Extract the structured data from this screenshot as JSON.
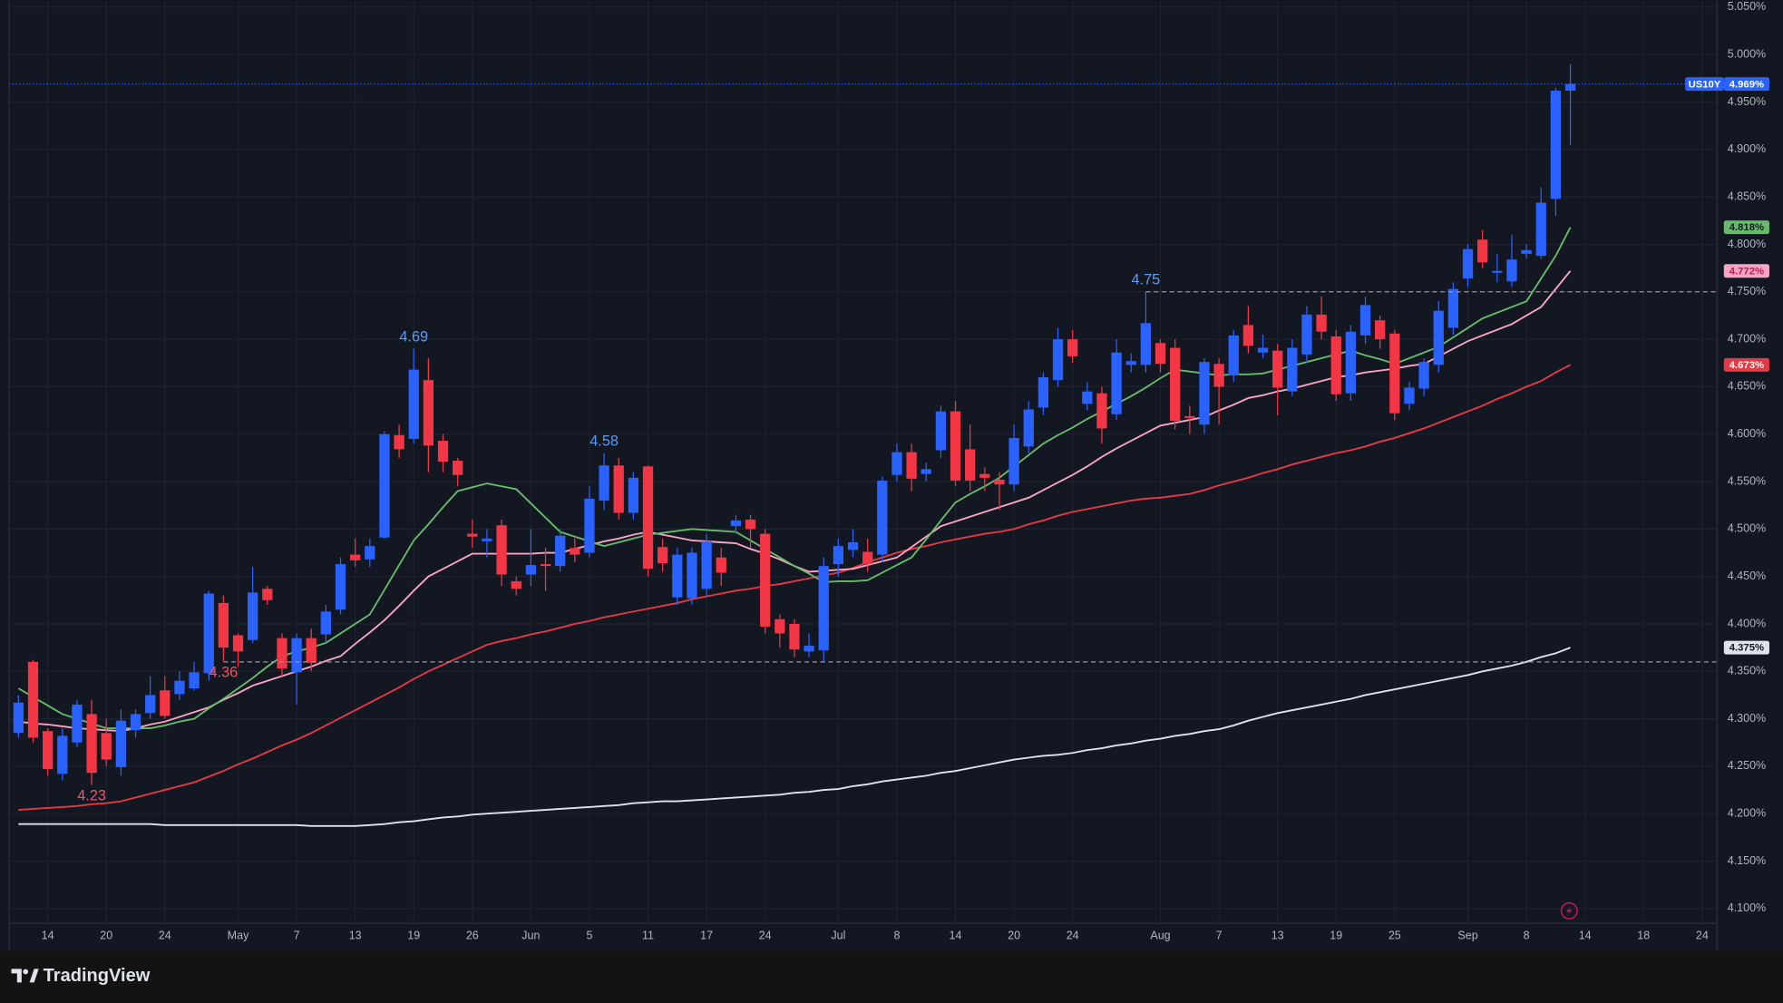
{
  "chart_data": {
    "type": "candlestick",
    "symbol": "US10Y",
    "last_price_label": "4.969%",
    "up_color": "#2962ff",
    "down_color": "#f23645",
    "grid": true,
    "ylim": [
      4.0844,
      5.0575
    ],
    "yticks": [
      {
        "value": 4.1,
        "label": "4.100%"
      },
      {
        "value": 4.15,
        "label": "4.150%"
      },
      {
        "value": 4.2,
        "label": "4.200%"
      },
      {
        "value": 4.25,
        "label": "4.250%"
      },
      {
        "value": 4.3,
        "label": "4.300%"
      },
      {
        "value": 4.35,
        "label": "4.350%"
      },
      {
        "value": 4.4,
        "label": "4.400%"
      },
      {
        "value": 4.45,
        "label": "4.450%"
      },
      {
        "value": 4.5,
        "label": "4.500%"
      },
      {
        "value": 4.55,
        "label": "4.550%"
      },
      {
        "value": 4.6,
        "label": "4.600%"
      },
      {
        "value": 4.65,
        "label": "4.650%"
      },
      {
        "value": 4.7,
        "label": "4.700%"
      },
      {
        "value": 4.75,
        "label": "4.750%"
      },
      {
        "value": 4.8,
        "label": "4.800%"
      },
      {
        "value": 4.85,
        "label": "4.850%"
      },
      {
        "value": 4.9,
        "label": "4.900%"
      },
      {
        "value": 4.95,
        "label": "4.950%"
      },
      {
        "value": 5.0,
        "label": "5.000%"
      },
      {
        "value": 5.05,
        "label": "5.050%"
      }
    ],
    "categories": [
      null,
      null,
      "14",
      null,
      null,
      null,
      "20",
      null,
      null,
      null,
      "24",
      null,
      null,
      null,
      null,
      "May",
      null,
      null,
      null,
      "7",
      null,
      null,
      null,
      "13",
      null,
      null,
      null,
      "19",
      null,
      null,
      null,
      "26",
      null,
      null,
      null,
      "Jun",
      null,
      null,
      null,
      "5",
      null,
      null,
      null,
      "11",
      null,
      null,
      null,
      "17",
      null,
      null,
      null,
      "24",
      null,
      null,
      null,
      null,
      "Jul",
      null,
      null,
      null,
      "8",
      null,
      null,
      null,
      "14",
      null,
      null,
      null,
      "20",
      null,
      null,
      null,
      "24",
      null,
      null,
      null,
      null,
      null,
      "Aug",
      null,
      null,
      null,
      "7",
      null,
      null,
      null,
      "13",
      null,
      null,
      null,
      "19",
      null,
      null,
      null,
      "25",
      null,
      null,
      null,
      null,
      "Sep",
      null,
      null,
      null,
      "8",
      null,
      null,
      null,
      "14",
      null,
      null,
      null,
      "18",
      null,
      null,
      null,
      "24"
    ],
    "open": [
      4.285,
      4.36,
      4.287,
      4.242,
      4.275,
      4.305,
      4.285,
      4.249,
      4.288,
      4.306,
      4.33,
      4.326,
      4.332,
      4.348,
      4.422,
      4.388,
      4.383,
      4.437,
      4.385,
      4.349,
      4.385,
      4.389,
      4.415,
      4.473,
      4.468,
      4.491,
      4.599,
      4.595,
      4.657,
      4.593,
      4.572,
      4.495,
      4.487,
      4.504,
      4.445,
      4.452,
      4.463,
      4.461,
      4.48,
      4.475,
      4.53,
      4.567,
      4.517,
      4.566,
      4.481,
      4.428,
      4.427,
      4.437,
      4.47,
      4.503,
      4.51,
      4.495,
      4.405,
      4.4,
      4.371,
      4.372,
      4.463,
      4.478,
      4.476,
      4.473,
      4.557,
      4.581,
      4.558,
      4.583,
      4.624,
      4.584,
      4.558,
      4.552,
      4.547,
      4.587,
      4.628,
      4.657,
      4.7,
      4.632,
      4.643,
      4.621,
      4.673,
      4.673,
      4.696,
      4.691,
      4.619,
      4.61,
      4.674,
      4.662,
      4.715,
      4.686,
      4.688,
      4.645,
      4.684,
      4.726,
      4.703,
      4.643,
      4.704,
      4.72,
      4.706,
      4.632,
      4.648,
      4.673,
      4.712,
      4.764,
      4.805,
      4.77,
      4.761,
      4.79,
      4.788,
      4.848,
      4.962,
      null,
      null,
      null,
      null,
      null,
      null,
      null,
      null,
      null
    ],
    "high": [
      4.325,
      4.362,
      4.29,
      4.29,
      4.32,
      4.32,
      4.3,
      4.31,
      4.31,
      4.345,
      4.345,
      4.35,
      4.36,
      4.435,
      4.43,
      4.39,
      4.46,
      4.44,
      4.39,
      4.39,
      4.395,
      4.42,
      4.47,
      4.49,
      4.49,
      4.603,
      4.61,
      4.69,
      4.68,
      4.6,
      4.575,
      4.51,
      4.5,
      4.51,
      4.45,
      4.5,
      4.48,
      4.5,
      4.49,
      4.545,
      4.58,
      4.575,
      4.56,
      4.567,
      4.49,
      4.48,
      4.48,
      4.495,
      4.48,
      4.515,
      4.515,
      4.5,
      4.41,
      4.405,
      4.39,
      4.47,
      4.49,
      4.5,
      4.49,
      4.555,
      4.59,
      4.59,
      4.57,
      4.63,
      4.635,
      4.61,
      4.565,
      4.56,
      4.61,
      4.635,
      4.665,
      4.712,
      4.71,
      4.655,
      4.65,
      4.7,
      4.685,
      4.75,
      4.7,
      4.7,
      4.63,
      4.68,
      4.68,
      4.71,
      4.735,
      4.705,
      4.695,
      4.7,
      4.735,
      4.745,
      4.71,
      4.715,
      4.745,
      4.725,
      4.71,
      4.655,
      4.68,
      4.74,
      4.76,
      4.8,
      4.815,
      4.79,
      4.81,
      4.8,
      4.86,
      4.965,
      4.99,
      null,
      null,
      null,
      null,
      null,
      null,
      null,
      null,
      null
    ],
    "low": [
      4.28,
      4.275,
      4.24,
      4.235,
      4.27,
      4.23,
      4.25,
      4.24,
      4.28,
      4.3,
      4.3,
      4.32,
      4.33,
      4.34,
      4.36,
      4.355,
      4.38,
      4.42,
      4.345,
      4.315,
      4.35,
      4.38,
      4.41,
      4.46,
      4.46,
      4.49,
      4.575,
      4.59,
      4.56,
      4.56,
      4.545,
      4.48,
      4.47,
      4.44,
      4.43,
      4.44,
      4.435,
      4.455,
      4.465,
      4.47,
      4.52,
      4.51,
      4.51,
      4.45,
      4.455,
      4.42,
      4.42,
      4.43,
      4.44,
      4.495,
      4.48,
      4.39,
      4.375,
      4.365,
      4.365,
      4.36,
      4.45,
      4.47,
      4.455,
      4.465,
      4.55,
      4.54,
      4.55,
      4.575,
      4.545,
      4.54,
      4.54,
      4.52,
      4.54,
      4.58,
      4.62,
      4.65,
      4.675,
      4.625,
      4.59,
      4.615,
      4.665,
      4.665,
      4.665,
      4.605,
      4.6,
      4.6,
      4.61,
      4.655,
      4.685,
      4.68,
      4.62,
      4.64,
      4.675,
      4.7,
      4.635,
      4.635,
      4.695,
      4.69,
      4.615,
      4.625,
      4.64,
      4.665,
      4.705,
      4.755,
      4.775,
      4.76,
      4.755,
      4.785,
      4.785,
      4.83,
      4.905,
      null,
      null,
      null,
      null,
      null,
      null,
      null,
      null,
      null
    ],
    "close": [
      4.317,
      4.28,
      4.247,
      4.282,
      4.315,
      4.243,
      4.257,
      4.298,
      4.305,
      4.325,
      4.303,
      4.34,
      4.349,
      4.432,
      4.375,
      4.371,
      4.433,
      4.425,
      4.353,
      4.385,
      4.359,
      4.413,
      4.463,
      4.467,
      4.482,
      4.6,
      4.584,
      4.668,
      4.588,
      4.571,
      4.557,
      4.492,
      4.49,
      4.452,
      4.437,
      4.462,
      4.461,
      4.493,
      4.473,
      4.532,
      4.567,
      4.517,
      4.554,
      4.458,
      4.464,
      4.473,
      4.475,
      4.487,
      4.454,
      4.509,
      4.5,
      4.397,
      4.39,
      4.373,
      4.377,
      4.461,
      4.482,
      4.486,
      4.463,
      4.551,
      4.581,
      4.553,
      4.563,
      4.624,
      4.551,
      4.551,
      4.554,
      4.547,
      4.596,
      4.626,
      4.66,
      4.7,
      4.682,
      4.645,
      4.606,
      4.686,
      4.677,
      4.717,
      4.674,
      4.614,
      4.617,
      4.676,
      4.65,
      4.704,
      4.693,
      4.691,
      4.649,
      4.691,
      4.726,
      4.708,
      4.642,
      4.708,
      4.736,
      4.7,
      4.622,
      4.649,
      4.676,
      4.73,
      4.753,
      4.795,
      4.781,
      4.772,
      4.784,
      4.794,
      4.844,
      4.962,
      4.969,
      null,
      null,
      null,
      null,
      null,
      null,
      null,
      null,
      null
    ],
    "series": [
      {
        "color": "#e0e3eb",
        "text_color": "#131722",
        "last_label": "4.375%",
        "values": [
          4.189,
          4.189,
          4.189,
          4.189,
          4.189,
          4.189,
          4.189,
          4.189,
          4.189,
          4.189,
          4.188,
          4.188,
          4.188,
          4.188,
          4.188,
          4.188,
          4.188,
          4.188,
          4.188,
          4.188,
          4.187,
          4.187,
          4.187,
          4.187,
          4.188,
          4.189,
          4.191,
          4.192,
          4.194,
          4.196,
          4.197,
          4.199,
          4.2,
          4.201,
          4.202,
          4.203,
          4.204,
          4.205,
          4.206,
          4.207,
          4.208,
          4.209,
          4.211,
          4.212,
          4.213,
          4.213,
          4.214,
          4.215,
          4.216,
          4.217,
          4.218,
          4.219,
          4.22,
          4.222,
          4.223,
          4.225,
          4.226,
          4.229,
          4.231,
          4.234,
          4.236,
          4.238,
          4.24,
          4.243,
          4.245,
          4.248,
          4.251,
          4.254,
          4.257,
          4.259,
          4.261,
          4.262,
          4.264,
          4.267,
          4.269,
          4.272,
          4.274,
          4.277,
          4.279,
          4.282,
          4.284,
          4.287,
          4.289,
          4.293,
          4.298,
          4.302,
          4.306,
          4.309,
          4.312,
          4.315,
          4.318,
          4.321,
          4.325,
          4.328,
          4.331,
          4.334,
          4.337,
          4.34,
          4.343,
          4.346,
          4.35,
          4.353,
          4.356,
          4.36,
          4.365,
          4.369,
          4.375,
          null,
          null,
          null,
          null,
          null,
          null,
          null,
          null,
          null
        ]
      },
      {
        "color": "#e53945",
        "text_color": "#ffffff",
        "last_label": "4.673%",
        "values": [
          4.204,
          4.205,
          4.206,
          4.207,
          4.208,
          4.21,
          4.211,
          4.213,
          4.217,
          4.221,
          4.225,
          4.229,
          4.233,
          4.239,
          4.245,
          4.252,
          4.258,
          4.265,
          4.272,
          4.278,
          4.285,
          4.293,
          4.301,
          4.309,
          4.317,
          4.325,
          4.333,
          4.342,
          4.35,
          4.357,
          4.364,
          4.371,
          4.378,
          4.382,
          4.385,
          4.389,
          4.392,
          4.396,
          4.4,
          4.403,
          4.407,
          4.41,
          4.413,
          4.416,
          4.419,
          4.422,
          4.426,
          4.429,
          4.432,
          4.435,
          4.437,
          4.44,
          4.442,
          4.445,
          4.448,
          4.451,
          4.454,
          4.459,
          4.465,
          4.47,
          4.475,
          4.479,
          4.482,
          4.486,
          4.489,
          4.492,
          4.495,
          4.497,
          4.5,
          4.505,
          4.509,
          4.514,
          4.518,
          4.521,
          4.524,
          4.527,
          4.53,
          4.532,
          4.533,
          4.535,
          4.537,
          4.541,
          4.546,
          4.55,
          4.554,
          4.559,
          4.563,
          4.568,
          4.572,
          4.576,
          4.58,
          4.583,
          4.587,
          4.592,
          4.596,
          4.601,
          4.606,
          4.612,
          4.618,
          4.624,
          4.63,
          4.637,
          4.643,
          4.65,
          4.656,
          4.665,
          4.673,
          null,
          null,
          null,
          null,
          null,
          null,
          null,
          null,
          null
        ]
      },
      {
        "color": "#f8a5c2",
        "text_color": "#c2185b",
        "last_label": "4.772%",
        "values": [
          4.297,
          4.295,
          4.294,
          4.292,
          4.29,
          4.289,
          4.288,
          4.287,
          4.29,
          4.294,
          4.297,
          4.302,
          4.307,
          4.312,
          4.32,
          4.327,
          4.335,
          4.34,
          4.345,
          4.35,
          4.355,
          4.361,
          4.366,
          4.379,
          4.391,
          4.404,
          4.419,
          4.435,
          4.45,
          4.458,
          4.466,
          4.474,
          4.474,
          4.474,
          4.474,
          4.474,
          4.475,
          4.475,
          4.479,
          4.483,
          4.487,
          4.49,
          4.494,
          4.497,
          4.494,
          4.491,
          4.488,
          4.487,
          4.486,
          4.485,
          4.479,
          4.474,
          4.468,
          4.461,
          4.455,
          4.456,
          4.457,
          4.458,
          4.462,
          4.466,
          4.47,
          4.481,
          4.492,
          4.503,
          4.508,
          4.513,
          4.518,
          4.523,
          4.528,
          4.533,
          4.541,
          4.549,
          4.557,
          4.566,
          4.576,
          4.585,
          4.593,
          4.601,
          4.609,
          4.612,
          4.615,
          4.618,
          4.625,
          4.631,
          4.638,
          4.641,
          4.645,
          4.648,
          4.652,
          4.656,
          4.66,
          4.662,
          4.665,
          4.667,
          4.669,
          4.672,
          4.674,
          4.682,
          4.69,
          4.698,
          4.704,
          4.71,
          4.716,
          4.725,
          4.734,
          4.753,
          4.772,
          null,
          null,
          null,
          null,
          null,
          null,
          null,
          null,
          null
        ]
      },
      {
        "color": "#66bb6a",
        "text_color": "#131722",
        "last_label": "4.818%",
        "values": [
          4.332,
          4.323,
          4.314,
          4.305,
          4.3,
          4.295,
          4.29,
          4.29,
          4.29,
          4.29,
          4.293,
          4.297,
          4.3,
          4.311,
          4.321,
          4.332,
          4.343,
          4.355,
          4.366,
          4.371,
          4.375,
          4.38,
          4.39,
          4.4,
          4.41,
          4.436,
          4.462,
          4.488,
          4.505,
          4.523,
          4.54,
          4.544,
          4.548,
          4.545,
          4.542,
          4.527,
          4.512,
          4.497,
          4.492,
          4.487,
          4.482,
          4.486,
          4.49,
          4.494,
          4.496,
          4.498,
          4.5,
          4.499,
          4.498,
          4.497,
          4.488,
          4.479,
          4.47,
          4.461,
          4.453,
          4.444,
          4.445,
          4.445,
          4.446,
          4.454,
          4.462,
          4.47,
          4.489,
          4.509,
          4.528,
          4.537,
          4.545,
          4.554,
          4.566,
          4.578,
          4.59,
          4.599,
          4.607,
          4.616,
          4.624,
          4.632,
          4.64,
          4.649,
          4.659,
          4.668,
          4.666,
          4.664,
          4.662,
          4.663,
          4.663,
          4.664,
          4.668,
          4.672,
          4.676,
          4.68,
          4.684,
          4.688,
          4.683,
          4.679,
          4.674,
          4.68,
          4.686,
          4.692,
          4.702,
          4.712,
          4.722,
          4.728,
          4.734,
          4.74,
          4.764,
          4.788,
          4.818,
          null,
          null,
          null,
          null,
          null,
          null,
          null,
          null,
          null
        ]
      }
    ],
    "markers": [
      {
        "type": "high",
        "value": 4.69,
        "line": false
      },
      {
        "type": "high",
        "value": 4.58,
        "line": false
      },
      {
        "type": "high",
        "value": 4.75,
        "line": true
      },
      {
        "type": "low",
        "value": 4.36,
        "line": true
      },
      {
        "type": "low",
        "value": 4.23,
        "line": false
      }
    ]
  },
  "brand": "TradingView"
}
